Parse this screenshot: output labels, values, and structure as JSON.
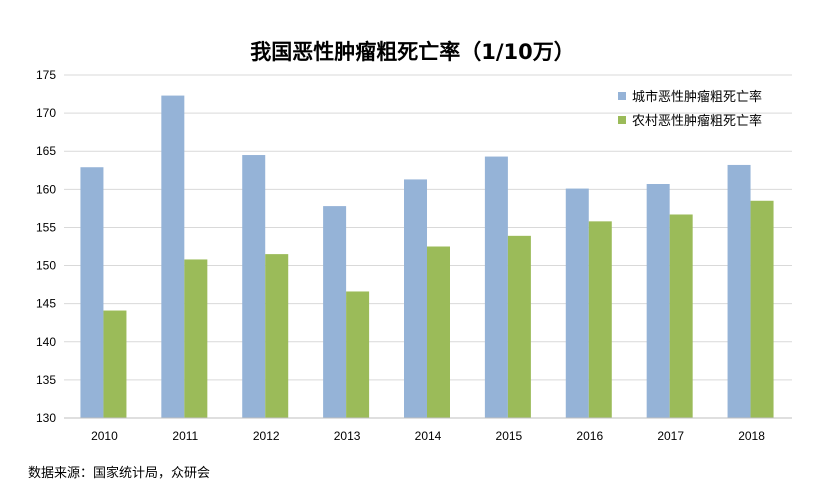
{
  "chart_data": {
    "type": "bar",
    "title": "我国恶性肿瘤粗死亡率（1/10万）",
    "xlabel": "",
    "ylabel": "",
    "categories": [
      "2010",
      "2011",
      "2012",
      "2013",
      "2014",
      "2015",
      "2016",
      "2017",
      "2018"
    ],
    "series": [
      {
        "name": "城市恶性肿瘤粗死亡率",
        "color": "#95B3D7",
        "values": [
          162.9,
          172.3,
          164.5,
          157.8,
          161.3,
          164.3,
          160.1,
          160.7,
          163.2
        ]
      },
      {
        "name": "农村恶性肿瘤粗死亡率",
        "color": "#9BBB59",
        "values": [
          144.1,
          150.8,
          151.5,
          146.6,
          152.5,
          153.9,
          155.8,
          156.7,
          158.5
        ]
      }
    ],
    "ylim": [
      130,
      175
    ],
    "yticks": [
      "130",
      "135",
      "140",
      "145",
      "150",
      "155",
      "160",
      "165",
      "170",
      "175"
    ],
    "grid": true,
    "legend_position": "top-right"
  },
  "source": "数据来源：国家统计局，众研会"
}
